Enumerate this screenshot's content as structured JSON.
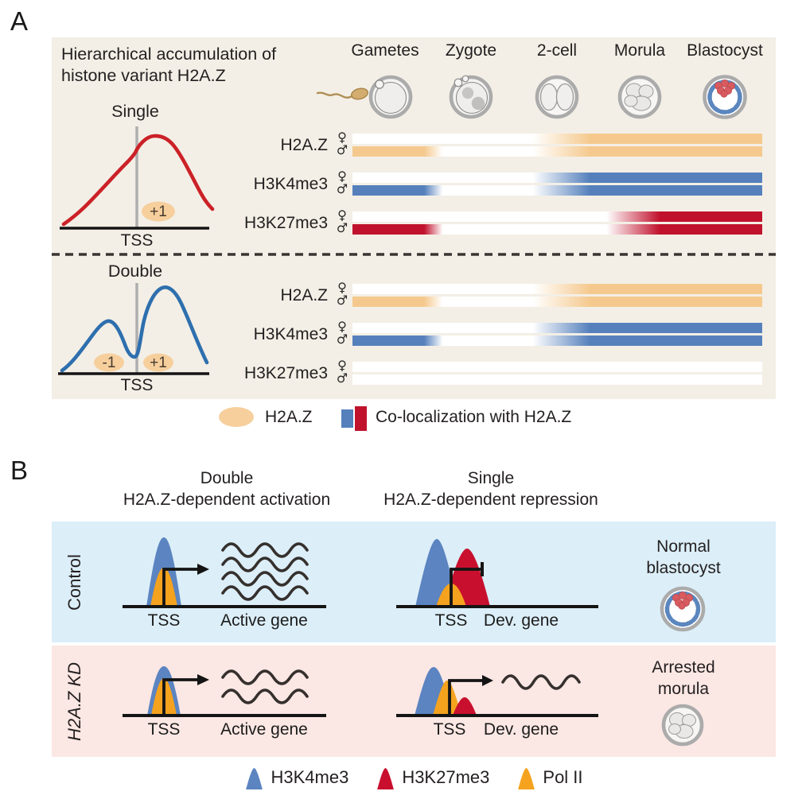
{
  "panelA": {
    "label": "A",
    "title_line1": "Hierarchical accumulation of",
    "title_line2": "histone variant H2A.Z",
    "stages": [
      "Gametes",
      "Zygote",
      "2-cell",
      "Morula",
      "Blastocyst"
    ],
    "female_symbol": "♀",
    "male_symbol": "♂",
    "colors": {
      "h2az": "#F5C98E",
      "h3k4me3": "#5580BC",
      "h3k27me3": "#C1122D",
      "curve_single": "#CB2127",
      "curve_double": "#2E6FAE",
      "oval_fill": "#F6CF9D",
      "panel_bg": "#F3EFE6"
    },
    "sets": [
      {
        "name": "Single",
        "tss_label": "TSS",
        "ovals": [
          "+1"
        ],
        "tracks": [
          {
            "label": "H2A.Z",
            "color_key": "h2az",
            "female_pattern": "late",
            "male_pattern": "early_late"
          },
          {
            "label": "H3K4me3",
            "color_key": "h3k4me3",
            "female_pattern": "late",
            "male_pattern": "early_late"
          },
          {
            "label": "H3K27me3",
            "color_key": "h3k27me3",
            "female_pattern": "late_morula",
            "male_pattern": "early_late_morula"
          }
        ]
      },
      {
        "name": "Double",
        "tss_label": "TSS",
        "ovals": [
          "-1",
          "+1"
        ],
        "tracks": [
          {
            "label": "H2A.Z",
            "color_key": "h2az",
            "female_pattern": "late",
            "male_pattern": "early_late"
          },
          {
            "label": "H3K4me3",
            "color_key": "h3k4me3",
            "female_pattern": "late",
            "male_pattern": "early_late"
          },
          {
            "label": "H3K27me3",
            "color_key": "h3k27me3",
            "female_pattern": "none",
            "male_pattern": "none"
          }
        ]
      }
    ],
    "legend": {
      "h2az_label": "H2A.Z",
      "coloc_label": "Co-localization with H2A.Z"
    }
  },
  "panelB": {
    "label": "B",
    "columns": [
      {
        "title": "Double",
        "subtitle": "H2A.Z-dependent activation"
      },
      {
        "title": "Single",
        "subtitle": "H2A.Z-dependent repression"
      }
    ],
    "colors": {
      "control_bg": "#DCEEF8",
      "kd_bg": "#FBE7E3"
    },
    "rows": [
      {
        "name": "Control",
        "activation": {
          "tss": "TSS",
          "gene": "Active gene",
          "transcripts": 4,
          "regulation": "activated"
        },
        "repression": {
          "tss": "TSS",
          "gene": "Dev. gene",
          "transcripts": 0,
          "regulation": "repressed"
        },
        "outcome": {
          "line1": "Normal",
          "line2": "blastocyst"
        }
      },
      {
        "name": "H2A.Z KD",
        "activation": {
          "tss": "TSS",
          "gene": "Active gene",
          "transcripts": 2,
          "regulation": "activated"
        },
        "repression": {
          "tss": "TSS",
          "gene": "Dev. gene",
          "transcripts": 1,
          "regulation": "activated"
        },
        "outcome": {
          "line1": "Arrested",
          "line2": "morula"
        }
      }
    ],
    "legend": [
      {
        "label": "H3K4me3",
        "color": "#5B84C1"
      },
      {
        "label": "H3K27me3",
        "color": "#C8102E"
      },
      {
        "label": "Pol II",
        "color": "#F5A21E"
      }
    ]
  }
}
